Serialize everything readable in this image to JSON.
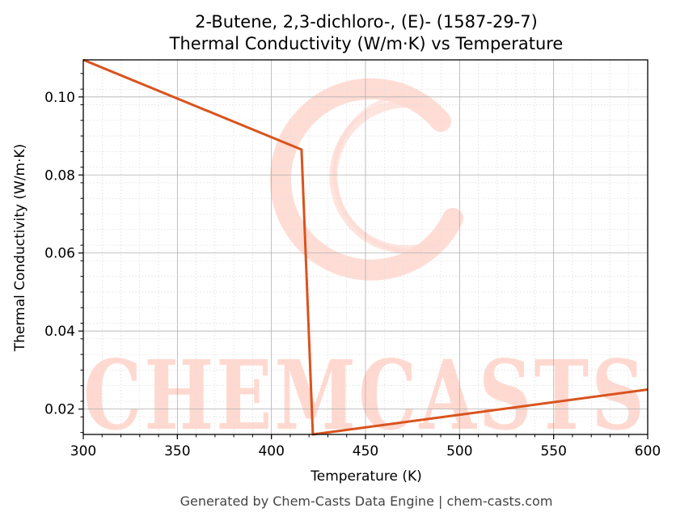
{
  "chart_data": {
    "type": "line",
    "title": "2-Butene, 2,3-dichloro-, (E)- (1587-29-7)",
    "subtitle": "Thermal Conductivity (W/m·K) vs Temperature",
    "xlabel": "Temperature (K)",
    "ylabel": "Thermal Conductivity (W/m·K)",
    "xlim": [
      300,
      600
    ],
    "ylim": [
      0.0135,
      0.1095
    ],
    "x_ticks": [
      300,
      350,
      400,
      450,
      500,
      550,
      600
    ],
    "y_ticks": [
      0.02,
      0.04,
      0.06,
      0.08,
      0.1
    ],
    "x_tick_labels": [
      "300",
      "350",
      "400",
      "450",
      "500",
      "550",
      "600"
    ],
    "y_tick_labels": [
      "0.02",
      "0.04",
      "0.06",
      "0.08",
      "0.10"
    ],
    "grid": true,
    "series": [
      {
        "color": "#d9531e",
        "x": [
          300,
          416,
          422,
          600
        ],
        "y": [
          0.1095,
          0.0865,
          0.0135,
          0.025
        ]
      }
    ]
  },
  "watermark": {
    "text": "CHEMCASTS",
    "color": "#ffd9d0"
  },
  "footer": "Generated by Chem-Casts Data Engine | chem-casts.com"
}
